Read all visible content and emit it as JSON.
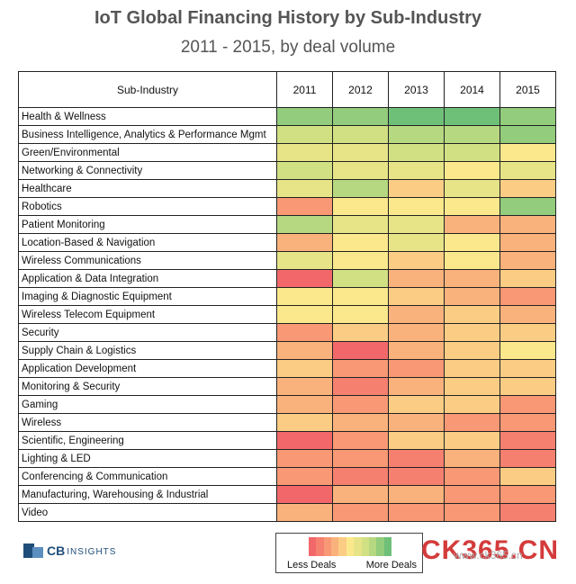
{
  "chart_data": {
    "type": "heatmap",
    "title": "IoT Global Financing History by Sub-Industry",
    "subtitle": "2011 - 2015, by deal volume",
    "row_header": "Sub-Industry",
    "columns": [
      "2011",
      "2012",
      "2013",
      "2014",
      "2015"
    ],
    "scale": {
      "min": 0,
      "max": 10,
      "low_label": "Less Deals",
      "high_label": "More Deals"
    },
    "rows": [
      {
        "label": "Health & Wellness",
        "values": [
          9,
          9,
          10,
          10,
          9
        ]
      },
      {
        "label": "Business Intelligence, Analytics & Performance Mgmt",
        "values": [
          7,
          7,
          8,
          8,
          9
        ]
      },
      {
        "label": "Green/Environmental",
        "values": [
          6,
          6,
          7,
          7,
          5
        ]
      },
      {
        "label": "Networking & Connectivity",
        "values": [
          7,
          6,
          6,
          5,
          6
        ]
      },
      {
        "label": "Healthcare",
        "values": [
          6,
          8,
          4,
          6,
          4
        ]
      },
      {
        "label": "Robotics",
        "values": [
          2,
          5,
          5,
          5,
          9
        ]
      },
      {
        "label": "Patient Monitoring",
        "values": [
          8,
          6,
          6,
          3,
          3
        ]
      },
      {
        "label": "Location-Based & Navigation",
        "values": [
          3,
          5,
          6,
          5,
          3
        ]
      },
      {
        "label": "Wireless Communications",
        "values": [
          6,
          5,
          4,
          5,
          3
        ]
      },
      {
        "label": "Application & Data Integration",
        "values": [
          0,
          7,
          3,
          3,
          4
        ]
      },
      {
        "label": "Imaging & Diagnostic Equipment",
        "values": [
          5,
          5,
          4,
          3,
          2
        ]
      },
      {
        "label": "Wireless Telecom Equipment",
        "values": [
          5,
          5,
          3,
          4,
          3
        ]
      },
      {
        "label": "Security",
        "values": [
          2,
          4,
          3,
          4,
          4
        ]
      },
      {
        "label": "Supply Chain & Logistics",
        "values": [
          3,
          0,
          3,
          4,
          5
        ]
      },
      {
        "label": "Application Development",
        "values": [
          4,
          2,
          2,
          4,
          4
        ]
      },
      {
        "label": "Monitoring & Security",
        "values": [
          3,
          1,
          3,
          4,
          4
        ]
      },
      {
        "label": "Gaming",
        "values": [
          3,
          2,
          4,
          4,
          2
        ]
      },
      {
        "label": "Wireless",
        "values": [
          4,
          3,
          3,
          2,
          2
        ]
      },
      {
        "label": "Scientific, Engineering",
        "values": [
          0,
          2,
          4,
          4,
          1
        ]
      },
      {
        "label": "Lighting & LED",
        "values": [
          2,
          2,
          1,
          3,
          1
        ]
      },
      {
        "label": "Conferencing & Communication",
        "values": [
          2,
          1,
          1,
          2,
          4
        ]
      },
      {
        "label": "Manufacturing, Warehousing & Industrial",
        "values": [
          0,
          3,
          3,
          2,
          2
        ]
      },
      {
        "label": "Video",
        "values": [
          3,
          2,
          2,
          2,
          1
        ]
      }
    ]
  },
  "logo": {
    "brand": "CB",
    "suffix": "INSIGHTS"
  },
  "watermark": {
    "text": "CK365.CN",
    "sub": "www.ck365.cn"
  }
}
